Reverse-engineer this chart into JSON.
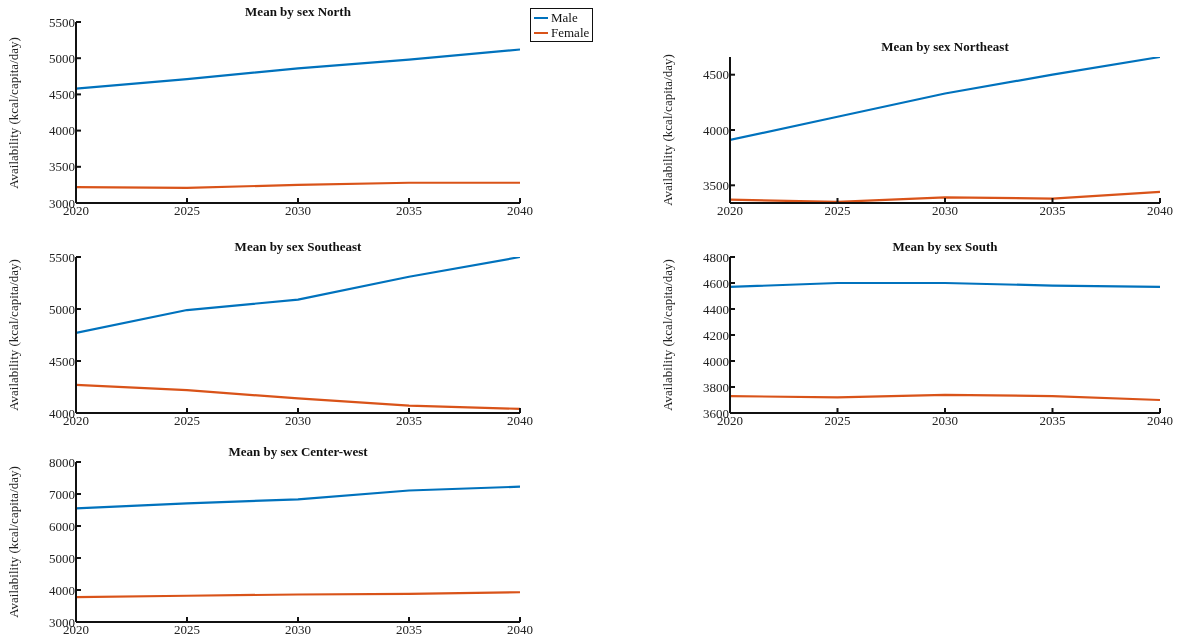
{
  "chart_data": [
    {
      "type": "line",
      "title": "Mean by sex North",
      "ylabel": "Availability (kcal/capita/day)",
      "x": [
        2020,
        2025,
        2030,
        2035,
        2040
      ],
      "xlim": [
        2020,
        2040
      ],
      "xticks": [
        2020,
        2025,
        2030,
        2035,
        2040
      ],
      "ylim": [
        3000,
        5500
      ],
      "yticks": [
        3000,
        3500,
        4000,
        4500,
        5000,
        5500
      ],
      "legend": "right",
      "grid": false,
      "series": [
        {
          "name": "Male",
          "color": "#0072bd",
          "values": [
            4580,
            4710,
            4860,
            4980,
            5120
          ]
        },
        {
          "name": "Female",
          "color": "#d95319",
          "values": [
            3220,
            3210,
            3250,
            3280,
            3280
          ]
        }
      ]
    },
    {
      "type": "line",
      "title": "Mean by sex Northeast",
      "ylabel": "Availability (kcal/capita/day)",
      "x": [
        2020,
        2025,
        2030,
        2035,
        2040
      ],
      "xlim": [
        2020,
        2040
      ],
      "xticks": [
        2020,
        2025,
        2030,
        2035,
        2040
      ],
      "ylim": [
        3340,
        4660
      ],
      "yticks": [
        3500,
        4000,
        4500
      ],
      "grid": false,
      "series": [
        {
          "color": "#0072bd",
          "values": [
            3910,
            4120,
            4330,
            4500,
            4660
          ]
        },
        {
          "color": "#d95319",
          "values": [
            3370,
            3350,
            3390,
            3380,
            3440
          ]
        }
      ]
    },
    {
      "type": "line",
      "title": "Mean by sex Southeast",
      "ylabel": "Availability (kcal/capita/day)",
      "x": [
        2020,
        2025,
        2030,
        2035,
        2040
      ],
      "xlim": [
        2020,
        2040
      ],
      "xticks": [
        2020,
        2025,
        2030,
        2035,
        2040
      ],
      "ylim": [
        4000,
        5500
      ],
      "yticks": [
        4000,
        4500,
        5000,
        5500
      ],
      "grid": false,
      "series": [
        {
          "color": "#0072bd",
          "values": [
            4770,
            4990,
            5090,
            5310,
            5500
          ]
        },
        {
          "color": "#d95319",
          "values": [
            4270,
            4220,
            4140,
            4070,
            4040
          ]
        }
      ]
    },
    {
      "type": "line",
      "title": "Mean by sex South",
      "ylabel": "Availability (kcal/capita/day)",
      "x": [
        2020,
        2025,
        2030,
        2035,
        2040
      ],
      "xlim": [
        2020,
        2040
      ],
      "xticks": [
        2020,
        2025,
        2030,
        2035,
        2040
      ],
      "ylim": [
        3600,
        4800
      ],
      "yticks": [
        3600,
        3800,
        4000,
        4200,
        4400,
        4600,
        4800
      ],
      "grid": false,
      "series": [
        {
          "color": "#0072bd",
          "values": [
            4570,
            4600,
            4600,
            4580,
            4570
          ]
        },
        {
          "color": "#d95319",
          "values": [
            3730,
            3720,
            3740,
            3730,
            3700
          ]
        }
      ]
    },
    {
      "type": "line",
      "title": "Mean by sex Center-west",
      "ylabel": "Availability (kcal/capita/day)",
      "x": [
        2020,
        2025,
        2030,
        2035,
        2040
      ],
      "xlim": [
        2020,
        2040
      ],
      "xticks": [
        2020,
        2025,
        2030,
        2035,
        2040
      ],
      "ylim": [
        3000,
        8000
      ],
      "yticks": [
        3000,
        4000,
        5000,
        6000,
        7000,
        8000
      ],
      "grid": false,
      "series": [
        {
          "color": "#0072bd",
          "values": [
            6550,
            6710,
            6830,
            7110,
            7230
          ]
        },
        {
          "color": "#d95319",
          "values": [
            3780,
            3820,
            3860,
            3880,
            3930
          ]
        }
      ]
    }
  ]
}
